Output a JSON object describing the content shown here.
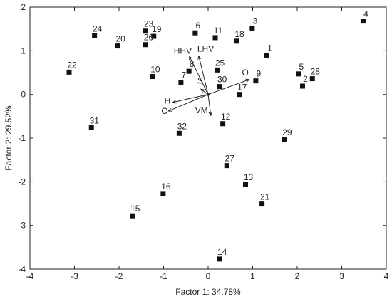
{
  "chart_data": {
    "type": "scatter",
    "xlabel": "Factor 1: 34.78%",
    "ylabel": "Factor 2: 29.52%",
    "xlim": [
      -4,
      4
    ],
    "ylim": [
      -4,
      2
    ],
    "xticks": [
      -4,
      -3,
      -2,
      -1,
      0,
      1,
      2,
      3,
      4
    ],
    "yticks": [
      -4,
      -3,
      -2,
      -1,
      0,
      1,
      2
    ],
    "grid": false,
    "marker_color": "#111111",
    "points": [
      {
        "label": "1",
        "x": 1.32,
        "y": 0.9
      },
      {
        "label": "2",
        "x": 2.12,
        "y": 0.19
      },
      {
        "label": "3",
        "x": 0.99,
        "y": 1.52
      },
      {
        "label": "4",
        "x": 3.48,
        "y": 1.68
      },
      {
        "label": "5",
        "x": 2.03,
        "y": 0.47
      },
      {
        "label": "6",
        "x": -0.29,
        "y": 1.41
      },
      {
        "label": "7",
        "x": -0.61,
        "y": 0.28
      },
      {
        "label": "8",
        "x": -0.43,
        "y": 0.53
      },
      {
        "label": "9",
        "x": 1.07,
        "y": 0.31
      },
      {
        "label": "10",
        "x": -1.25,
        "y": 0.41
      },
      {
        "label": "11",
        "x": 0.16,
        "y": 1.3
      },
      {
        "label": "12",
        "x": 0.33,
        "y": -0.67
      },
      {
        "label": "13",
        "x": 0.84,
        "y": -2.06
      },
      {
        "label": "14",
        "x": 0.25,
        "y": -3.77
      },
      {
        "label": "15",
        "x": -1.7,
        "y": -2.78
      },
      {
        "label": "16",
        "x": -1.01,
        "y": -2.27
      },
      {
        "label": "17",
        "x": 0.7,
        "y": 0.0
      },
      {
        "label": "18",
        "x": 0.64,
        "y": 1.22
      },
      {
        "label": "19",
        "x": -1.22,
        "y": 1.33
      },
      {
        "label": "20",
        "x": -2.03,
        "y": 1.11
      },
      {
        "label": "21",
        "x": 1.21,
        "y": -2.51
      },
      {
        "label": "22",
        "x": -3.12,
        "y": 0.51
      },
      {
        "label": "23",
        "x": -1.4,
        "y": 1.45
      },
      {
        "label": "24",
        "x": -2.55,
        "y": 1.34
      },
      {
        "label": "25",
        "x": 0.2,
        "y": 0.56
      },
      {
        "label": "26",
        "x": -1.4,
        "y": 1.14
      },
      {
        "label": "27",
        "x": 0.42,
        "y": -1.63
      },
      {
        "label": "28",
        "x": 2.34,
        "y": 0.36
      },
      {
        "label": "29",
        "x": 1.71,
        "y": -1.03
      },
      {
        "label": "30",
        "x": 0.25,
        "y": 0.18
      },
      {
        "label": "31",
        "x": -2.62,
        "y": -0.76
      },
      {
        "label": "32",
        "x": -0.65,
        "y": -0.89
      }
    ],
    "vectors": [
      {
        "label": "HHV",
        "x": -0.42,
        "y": 0.87
      },
      {
        "label": "LHV",
        "x": -0.21,
        "y": 0.88
      },
      {
        "label": "S",
        "x": -0.16,
        "y": 0.12
      },
      {
        "label": "H",
        "x": -0.79,
        "y": -0.18
      },
      {
        "label": "C",
        "x": -0.89,
        "y": -0.38
      },
      {
        "label": "VM",
        "x": 0.06,
        "y": -0.48
      },
      {
        "label": "O",
        "x": 0.92,
        "y": 0.34
      }
    ]
  }
}
